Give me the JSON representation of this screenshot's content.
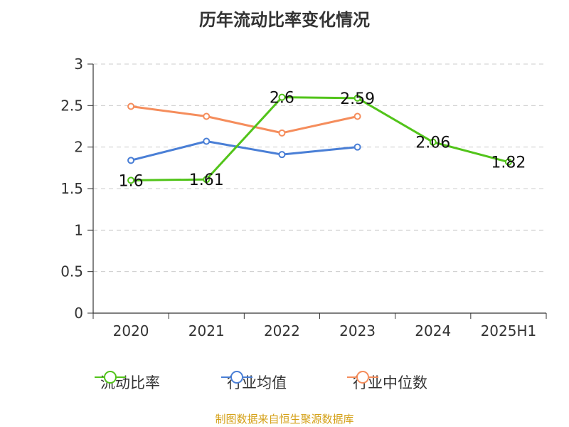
{
  "chart_data": {
    "type": "line",
    "title": "历年流动比率变化情况",
    "categories": [
      "2020",
      "2021",
      "2022",
      "2023",
      "2024",
      "2025H1"
    ],
    "ylim": [
      0,
      3
    ],
    "yticks": [
      "0",
      "0.5",
      "1",
      "1.5",
      "2",
      "2.5",
      "3"
    ],
    "grid": true,
    "legend_position": "bottom",
    "series": [
      {
        "name": "流动比率",
        "color": "#52c41a",
        "values": [
          1.6,
          1.61,
          2.6,
          2.59,
          2.06,
          1.82
        ],
        "labels": [
          "1.6",
          "1.61",
          "2.6",
          "2.59",
          "2.06",
          "1.82"
        ]
      },
      {
        "name": "行业均值",
        "color": "#4a7fd6",
        "values": [
          1.84,
          2.07,
          1.91,
          2.0,
          null,
          null
        ]
      },
      {
        "name": "行业中位数",
        "color": "#f58d5c",
        "values": [
          2.49,
          2.37,
          2.17,
          2.37,
          null,
          null
        ]
      }
    ]
  },
  "source_note": "制图数据来自恒生聚源数据库"
}
